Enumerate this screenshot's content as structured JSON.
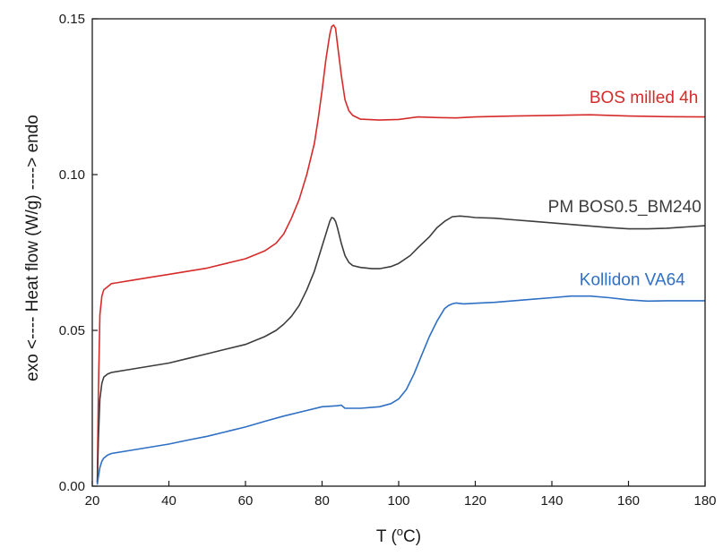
{
  "chart_data": {
    "type": "line",
    "title": "",
    "xlabel": "T (°C)",
    "xlabel_main": "T (",
    "xlabel_sup": "o",
    "xlabel_unit": "C)",
    "ylabel": "exo <---- Heat flow (W/g) ----> endo",
    "xlim": [
      20,
      180
    ],
    "ylim": [
      0,
      0.15
    ],
    "x_ticks": [
      20,
      40,
      60,
      80,
      100,
      120,
      140,
      160,
      180
    ],
    "x_tick_labels": [
      "20",
      "40",
      "60",
      "80",
      "100",
      "120",
      "140",
      "160",
      "180"
    ],
    "y_ticks": [
      0,
      0.05,
      0.1,
      0.15
    ],
    "y_tick_labels": [
      "0.00",
      "0.05",
      "0.10",
      "0.15"
    ],
    "grid": false,
    "series": [
      {
        "name": "BOS milled 4h",
        "color": "#d62b2b",
        "label_anchor": [
          164,
          0.123
        ],
        "x": [
          21.3,
          21.6,
          22.0,
          22.5,
          23.0,
          24.0,
          25.0,
          30,
          35,
          40,
          45,
          50,
          55,
          60,
          65,
          68,
          70,
          72,
          74,
          76,
          78,
          79,
          80,
          81,
          82,
          82.5,
          83,
          83.5,
          84,
          85,
          86,
          87,
          88,
          90,
          95,
          100,
          105,
          110,
          115,
          120,
          130,
          140,
          150,
          160,
          170,
          180
        ],
        "y": [
          0.001,
          0.03,
          0.055,
          0.061,
          0.063,
          0.064,
          0.065,
          0.066,
          0.067,
          0.068,
          0.069,
          0.07,
          0.0715,
          0.073,
          0.0755,
          0.078,
          0.081,
          0.086,
          0.092,
          0.1,
          0.11,
          0.118,
          0.127,
          0.137,
          0.145,
          0.1475,
          0.148,
          0.147,
          0.142,
          0.132,
          0.124,
          0.1205,
          0.119,
          0.1178,
          0.1175,
          0.1177,
          0.1185,
          0.1183,
          0.1182,
          0.1185,
          0.1188,
          0.119,
          0.1192,
          0.1188,
          0.1186,
          0.1185
        ]
      },
      {
        "name": "PM BOS0.5_BM240",
        "color": "#3d3d3d",
        "label_anchor": [
          159,
          0.088
        ],
        "x": [
          21.3,
          21.6,
          22.0,
          22.5,
          23.0,
          24.0,
          25,
          30,
          35,
          40,
          45,
          50,
          55,
          60,
          65,
          68,
          70,
          72,
          74,
          76,
          78,
          80,
          81,
          82,
          82.5,
          83,
          83.5,
          84,
          85,
          86,
          87,
          88,
          90,
          93,
          95,
          98,
          100,
          103,
          105,
          108,
          110,
          112,
          114,
          116,
          118,
          120,
          125,
          130,
          135,
          140,
          145,
          150,
          155,
          160,
          165,
          170,
          175,
          180
        ],
        "y": [
          0.001,
          0.015,
          0.028,
          0.033,
          0.035,
          0.036,
          0.0365,
          0.0375,
          0.0385,
          0.0395,
          0.041,
          0.0425,
          0.044,
          0.0455,
          0.048,
          0.05,
          0.052,
          0.0545,
          0.058,
          0.063,
          0.069,
          0.077,
          0.081,
          0.085,
          0.0862,
          0.086,
          0.085,
          0.083,
          0.078,
          0.074,
          0.0718,
          0.0708,
          0.0702,
          0.0698,
          0.0698,
          0.0705,
          0.0715,
          0.074,
          0.0765,
          0.08,
          0.083,
          0.085,
          0.0865,
          0.0867,
          0.0865,
          0.0862,
          0.086,
          0.0855,
          0.085,
          0.0845,
          0.084,
          0.0835,
          0.083,
          0.0826,
          0.0826,
          0.0828,
          0.0832,
          0.0836
        ]
      },
      {
        "name": "Kollidon VA64",
        "color": "#2f6fc4",
        "label_anchor": [
          161,
          0.0645
        ],
        "x": [
          21.3,
          21.6,
          22.0,
          22.5,
          23.0,
          24.0,
          25,
          30,
          35,
          40,
          45,
          50,
          55,
          60,
          65,
          70,
          75,
          80,
          84,
          85,
          86,
          90,
          95,
          98,
          100,
          102,
          104,
          106,
          108,
          110,
          112,
          113,
          114,
          115,
          117,
          120,
          125,
          130,
          135,
          140,
          145,
          150,
          155,
          160,
          165,
          170,
          175,
          180
        ],
        "y": [
          0.0005,
          0.003,
          0.006,
          0.008,
          0.009,
          0.01,
          0.0105,
          0.0115,
          0.0125,
          0.0135,
          0.0148,
          0.016,
          0.0175,
          0.019,
          0.0208,
          0.0225,
          0.024,
          0.0255,
          0.0258,
          0.026,
          0.025,
          0.025,
          0.0255,
          0.0265,
          0.028,
          0.031,
          0.036,
          0.042,
          0.048,
          0.053,
          0.057,
          0.058,
          0.0585,
          0.0588,
          0.0585,
          0.0587,
          0.059,
          0.0595,
          0.06,
          0.0605,
          0.061,
          0.061,
          0.0605,
          0.0598,
          0.0594,
          0.0595,
          0.0595,
          0.0595
        ]
      }
    ]
  }
}
